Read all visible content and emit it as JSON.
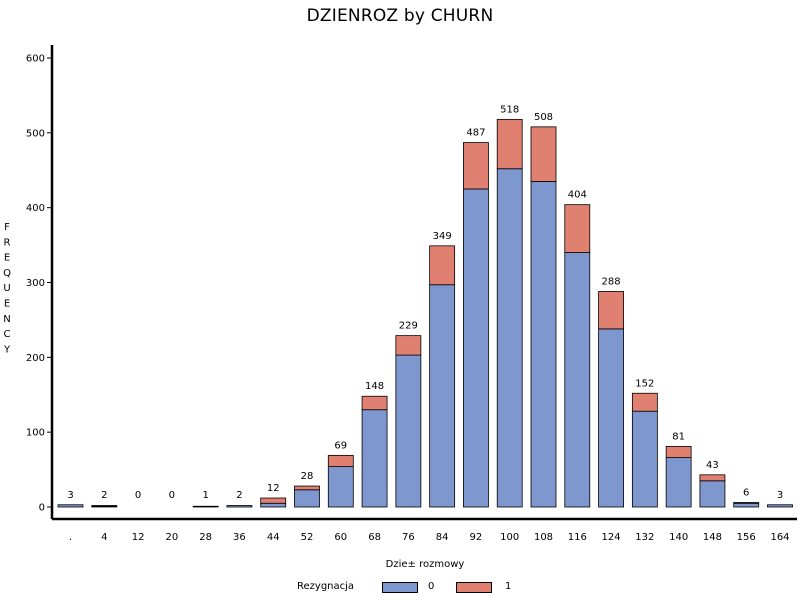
{
  "chart_data": {
    "type": "bar",
    "stacked": true,
    "title": "DZIENROZ by CHURN",
    "xlabel": "Dzie± rozmowy",
    "ylabel": "FREQUENCY",
    "ylim": [
      0,
      600
    ],
    "yticks": [
      "0",
      "100",
      "200",
      "300",
      "400",
      "500",
      "600"
    ],
    "categories": [
      ".",
      "4",
      "12",
      "20",
      "28",
      "36",
      "44",
      "52",
      "60",
      "68",
      "76",
      "84",
      "92",
      "100",
      "108",
      "116",
      "124",
      "132",
      "140",
      "148",
      "156",
      "164"
    ],
    "totals": [
      "3",
      "2",
      "0",
      "0",
      "1",
      "2",
      "12",
      "28",
      "69",
      "148",
      "229",
      "349",
      "487",
      "518",
      "508",
      "404",
      "288",
      "152",
      "81",
      "43",
      "6",
      "3"
    ],
    "series": [
      {
        "name": "0",
        "color": "#7F97CF",
        "values": [
          3,
          1,
          0,
          0,
          1,
          2,
          5,
          23,
          54,
          130,
          203,
          297,
          425,
          452,
          435,
          340,
          238,
          128,
          66,
          35,
          5,
          3
        ]
      },
      {
        "name": "1",
        "color": "#E08070",
        "values": [
          0,
          1,
          0,
          0,
          0,
          0,
          7,
          5,
          15,
          18,
          26,
          52,
          62,
          66,
          73,
          64,
          50,
          24,
          15,
          8,
          1,
          0
        ]
      }
    ],
    "grid": false,
    "legend": {
      "title": "Rezygnacja",
      "position": "bottom"
    }
  }
}
